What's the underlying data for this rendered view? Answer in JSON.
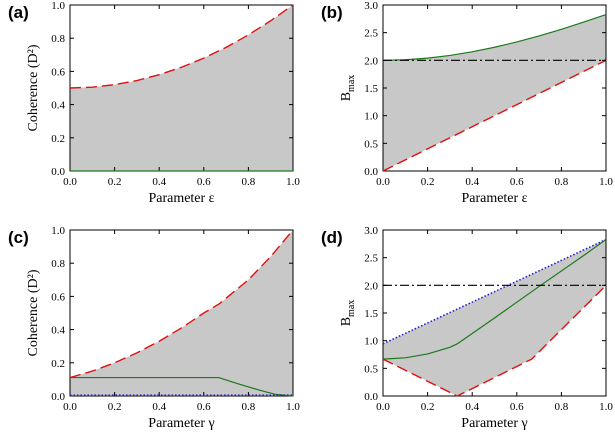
{
  "chart_data": [
    {
      "type": "area",
      "panel_label": "(a)",
      "xlabel": "Parameter ε",
      "ylabel": "Coherence (D²)",
      "xlim": [
        0,
        1
      ],
      "ylim": [
        0,
        1
      ],
      "xticks": [
        "0.0",
        "0.2",
        "0.4",
        "0.6",
        "0.8",
        "1.0"
      ],
      "yticks": [
        "0.0",
        "0.2",
        "0.4",
        "0.6",
        "0.8",
        "1.0"
      ],
      "series": [
        {
          "style": "red-dashed",
          "color": "#e01010",
          "x": [
            0,
            0.1,
            0.2,
            0.3,
            0.4,
            0.5,
            0.6,
            0.7,
            0.8,
            0.9,
            1.0
          ],
          "y": [
            0.5,
            0.505,
            0.52,
            0.545,
            0.58,
            0.625,
            0.68,
            0.745,
            0.82,
            0.905,
            1.0
          ]
        },
        {
          "style": "green-solid",
          "color": "#1a7a1a",
          "x": [
            0,
            1
          ],
          "y": [
            0.0,
            0.0
          ]
        }
      ]
    },
    {
      "type": "area",
      "panel_label": "(b)",
      "xlabel": "Parameter ε",
      "ylabel": "B_max",
      "xlim": [
        0,
        1
      ],
      "ylim": [
        0,
        3
      ],
      "xticks": [
        "0.0",
        "0.2",
        "0.4",
        "0.6",
        "0.8",
        "1.0"
      ],
      "yticks": [
        "0.0",
        "0.5",
        "1.0",
        "1.5",
        "2.0",
        "2.5",
        "3.0"
      ],
      "series": [
        {
          "style": "green-solid",
          "color": "#1a7a1a",
          "x": [
            0,
            0.1,
            0.2,
            0.3,
            0.4,
            0.5,
            0.6,
            0.7,
            0.8,
            0.9,
            1.0
          ],
          "y": [
            2.0,
            2.01,
            2.04,
            2.088,
            2.154,
            2.236,
            2.332,
            2.441,
            2.561,
            2.691,
            2.828
          ]
        },
        {
          "style": "red-dashed",
          "color": "#e01010",
          "x": [
            0,
            1
          ],
          "y": [
            0.0,
            2.0
          ]
        },
        {
          "style": "black-dashdot",
          "color": "#000000",
          "x": [
            0,
            1
          ],
          "y": [
            2.0,
            2.0
          ]
        }
      ]
    },
    {
      "type": "area",
      "panel_label": "(c)",
      "xlabel": "Parameter γ",
      "ylabel": "Coherence (D²)",
      "xlim": [
        0,
        1
      ],
      "ylim": [
        0,
        1
      ],
      "xticks": [
        "0.0",
        "0.2",
        "0.4",
        "0.6",
        "0.8",
        "1.0"
      ],
      "yticks": [
        "0.0",
        "0.2",
        "0.4",
        "0.6",
        "0.8",
        "1.0"
      ],
      "series": [
        {
          "style": "red-dashed",
          "color": "#e01010",
          "x": [
            0,
            0.1,
            0.2,
            0.3,
            0.4,
            0.5,
            0.6,
            0.67,
            0.8,
            0.9,
            1.0
          ],
          "y": [
            0.111,
            0.15,
            0.2,
            0.26,
            0.33,
            0.41,
            0.5,
            0.556,
            0.7,
            0.84,
            1.0
          ]
        },
        {
          "style": "green-solid",
          "color": "#1a7a1a",
          "x": [
            0,
            0.2,
            0.4,
            0.6,
            0.667,
            0.75,
            0.85,
            0.92,
            1.0
          ],
          "y": [
            0.111,
            0.111,
            0.111,
            0.111,
            0.111,
            0.075,
            0.035,
            0.01,
            0.0
          ]
        },
        {
          "style": "blue-dotted",
          "color": "#2020cc",
          "x": [
            0,
            1
          ],
          "y": [
            0.005,
            0.005
          ]
        }
      ]
    },
    {
      "type": "area",
      "panel_label": "(d)",
      "xlabel": "Parameter γ",
      "ylabel": "B_max",
      "xlim": [
        0,
        1
      ],
      "ylim": [
        0,
        3
      ],
      "xticks": [
        "0.0",
        "0.2",
        "0.4",
        "0.6",
        "0.8",
        "1.0"
      ],
      "yticks": [
        "0.0",
        "0.5",
        "1.0",
        "1.5",
        "2.0",
        "2.5",
        "3.0"
      ],
      "series": [
        {
          "style": "blue-dotted",
          "color": "#2020cc",
          "x": [
            0,
            1
          ],
          "y": [
            0.943,
            2.828
          ]
        },
        {
          "style": "green-solid",
          "color": "#1a7a1a",
          "x": [
            0,
            0.1,
            0.2,
            0.3,
            0.333,
            0.5,
            0.7,
            0.9,
            1.0
          ],
          "y": [
            0.667,
            0.69,
            0.76,
            0.88,
            0.943,
            1.41,
            1.98,
            2.54,
            2.828
          ]
        },
        {
          "style": "red-dashed",
          "color": "#e01010",
          "x": [
            0,
            0.333,
            0.667,
            1.0
          ],
          "y": [
            0.667,
            0.0,
            0.667,
            2.0
          ]
        },
        {
          "style": "black-dashdot",
          "color": "#000000",
          "x": [
            0,
            1
          ],
          "y": [
            2.0,
            2.0
          ]
        }
      ]
    }
  ]
}
